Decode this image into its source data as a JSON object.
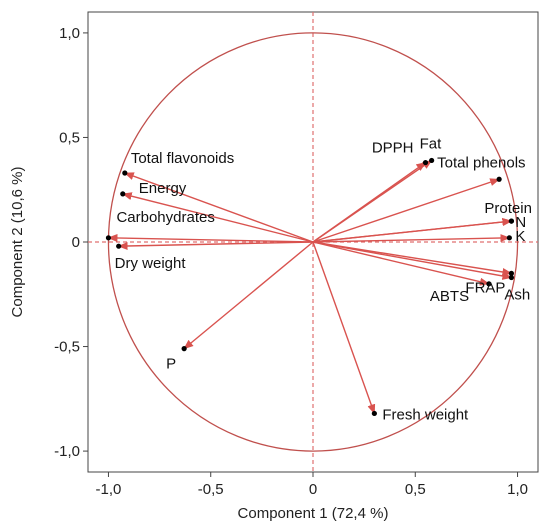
{
  "chart_data": {
    "type": "scatter",
    "subtype": "pca-correlation-circle",
    "title": "",
    "xlabel": "Component 1  (72,4 %)",
    "ylabel": "Component 2  (10,6 %)",
    "xlim": [
      -1.1,
      1.1
    ],
    "ylim": [
      -1.1,
      1.1
    ],
    "x_ticks": [
      "-1,0",
      "-0,5",
      "0",
      "0,5",
      "1,0"
    ],
    "y_ticks": [
      "-1,0",
      "-0,5",
      "0",
      "0,5",
      "1,0"
    ],
    "x_tick_values": [
      -1.0,
      -0.5,
      0,
      0.5,
      1.0
    ],
    "y_tick_values": [
      -1.0,
      -0.5,
      0,
      0.5,
      1.0
    ],
    "unit_circle": true,
    "reference_lines": "dashed at x=0 and y=0",
    "colors": {
      "arrow": "#d9534f",
      "circle": "#c0504d",
      "point": "#000000",
      "refline": "#e07070"
    },
    "points": [
      {
        "label": "Total flavonoids",
        "x": -0.92,
        "y": 0.33
      },
      {
        "label": "Energy",
        "x": -0.93,
        "y": 0.23
      },
      {
        "label": "Carbohydrates",
        "x": -1.0,
        "y": 0.02
      },
      {
        "label": "Dry weight",
        "x": -0.95,
        "y": -0.02
      },
      {
        "label": "P",
        "x": -0.63,
        "y": -0.51
      },
      {
        "label": "DPPH",
        "x": 0.55,
        "y": 0.38
      },
      {
        "label": "Fat",
        "x": 0.58,
        "y": 0.39
      },
      {
        "label": "Total phenols",
        "x": 0.91,
        "y": 0.3
      },
      {
        "label": "Protein",
        "x": 0.97,
        "y": 0.1
      },
      {
        "label": "N",
        "x": 0.97,
        "y": 0.1
      },
      {
        "label": "K",
        "x": 0.96,
        "y": 0.02
      },
      {
        "label": "FRAP",
        "x": 0.97,
        "y": -0.15
      },
      {
        "label": "Ash",
        "x": 0.97,
        "y": -0.17
      },
      {
        "label": "ABTS",
        "x": 0.86,
        "y": -0.2
      },
      {
        "label": "Fresh weight",
        "x": 0.3,
        "y": -0.82
      }
    ]
  }
}
